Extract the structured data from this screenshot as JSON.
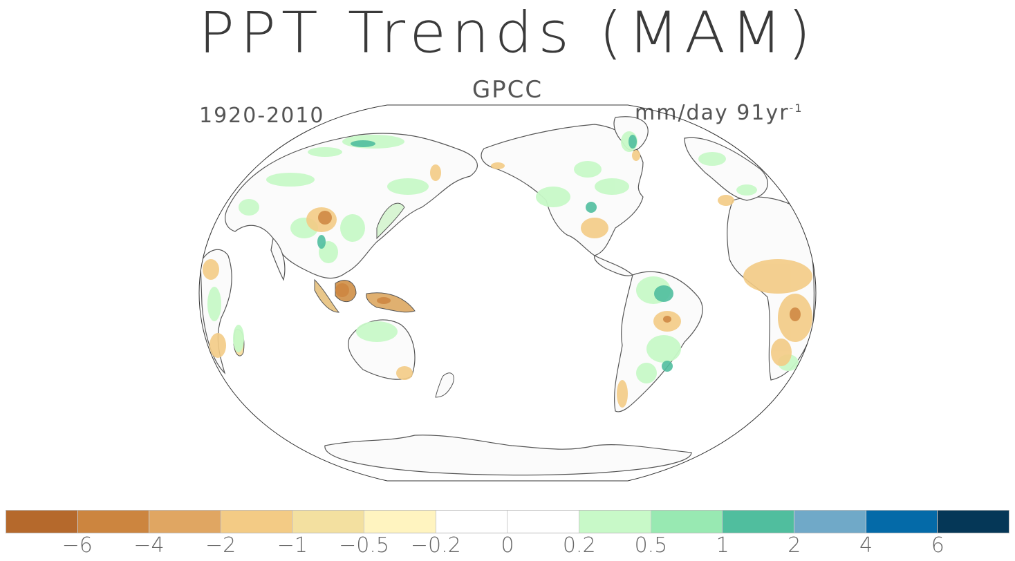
{
  "title": "PPT Trends (MAM)",
  "subtitle": "GPCC",
  "period": "1920-2010",
  "units": {
    "main": "mm/day 91yr",
    "exp": "-1"
  },
  "colorbar": {
    "colors": [
      "#b5692c",
      "#cc853f",
      "#e0a662",
      "#f3cb85",
      "#f3e0a0",
      "#fff4c0",
      "#ffffff",
      "#ffffff",
      "#c8f9c8",
      "#98e9b2",
      "#50be9e",
      "#70a9c8",
      "#046aa8",
      "#053757"
    ],
    "labels": [
      "−6",
      "−4",
      "−2",
      "−1",
      "−0.5",
      "−0.2",
      "0",
      "0.2",
      "0.5",
      "1",
      "2",
      "4",
      "6"
    ]
  },
  "map_legend": {
    "dry": "#e8bf7a",
    "wet": "#9ae8b2",
    "strong_dry": "#c98a45",
    "strong_wet": "#4fb89a"
  }
}
